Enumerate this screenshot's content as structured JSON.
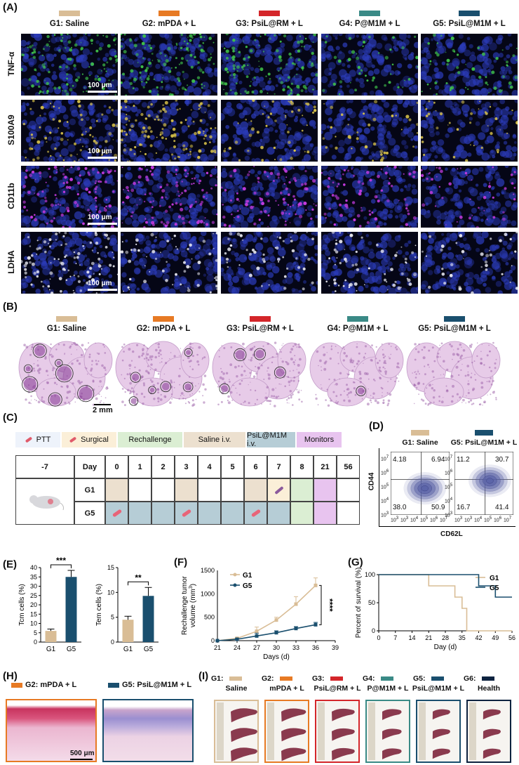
{
  "panels": {
    "A": "(A)",
    "B": "(B)",
    "C": "(C)",
    "D": "(D)",
    "E": "(E)",
    "F": "(F)",
    "G": "(G)",
    "H": "(H)",
    "I": "(I)"
  },
  "colors": {
    "g1": "#d9bd96",
    "g2": "#e77a24",
    "g3": "#d4262a",
    "g4": "#3a8a86",
    "g5": "#1a4f6e",
    "g6": "#0e2340"
  },
  "groups": [
    "G1: Saline",
    "G2: mPDA + L",
    "G3: PsiL@RM + L",
    "G4: P@M1M + L",
    "G5: PsiL@M1M + L"
  ],
  "panel_a": {
    "markers": [
      "TNF-α",
      "S100A9",
      "CD11b",
      "LDHA"
    ],
    "scale": "100 μm",
    "marker_colors": [
      "#3fc04a",
      "#d8c24a",
      "#c43be0",
      "#e8e8f0"
    ]
  },
  "panel_b": {
    "scale": "2 mm"
  },
  "panel_c": {
    "legend": [
      "PTT",
      "Surgical",
      "Rechallenge",
      "Saline i.v.",
      "PsiL@M1M i.v.",
      "Monitors"
    ],
    "legend_colors": [
      "#eef3fb",
      "#fbefd8",
      "#dbeed3",
      "#ece0cf",
      "#b6cdd6",
      "#e8c4ef"
    ],
    "header_first": "-7",
    "header_day": "Day",
    "days": [
      "0",
      "1",
      "2",
      "3",
      "4",
      "5",
      "6",
      "7",
      "8",
      "21",
      "56"
    ],
    "rows": [
      "G1",
      "G5"
    ]
  },
  "panel_d": {
    "titles": [
      "G1: Saline",
      "G5: PsiL@M1M + L"
    ],
    "ylabel": "CD44",
    "xlabel": "CD62L",
    "quadrants": [
      [
        "4.18",
        "6.94",
        "38.0",
        "50.9"
      ],
      [
        "11.2",
        "30.7",
        "16.7",
        "41.4"
      ]
    ],
    "yticks": [
      "10",
      "10",
      "10",
      "10",
      "10",
      "10"
    ],
    "yexp": [
      "7",
      "6",
      "5",
      "4",
      "3"
    ],
    "xticks": [
      "10",
      "10",
      "10",
      "10",
      "10",
      "10"
    ],
    "xexp": [
      "3",
      "3",
      "4",
      "5",
      "6",
      "7"
    ]
  },
  "chart_data": [
    {
      "type": "bar",
      "categories": [
        "G1",
        "G5"
      ],
      "values": [
        6.0,
        35.0
      ],
      "errors": [
        1.0,
        3.5
      ],
      "ylabel": "Tcm cells (%)",
      "ylim": [
        0,
        40
      ],
      "yticks": [
        "0",
        "5",
        "10",
        "15",
        "20",
        "25",
        "30",
        "35",
        "40"
      ],
      "significance": "***"
    },
    {
      "type": "bar",
      "categories": [
        "G1",
        "G5"
      ],
      "values": [
        4.5,
        9.3
      ],
      "errors": [
        0.7,
        1.7
      ],
      "ylabel": "Tem cells (%)",
      "ylim": [
        0,
        15
      ],
      "yticks": [
        "0",
        "5",
        "10",
        "15"
      ],
      "significance": "**"
    },
    {
      "type": "line",
      "x": [
        21,
        24,
        27,
        30,
        33,
        36
      ],
      "series": [
        {
          "name": "G1",
          "values": [
            0,
            50,
            200,
            440,
            780,
            1180
          ],
          "errors": [
            0,
            20,
            90,
            60,
            160,
            160
          ]
        },
        {
          "name": "G5",
          "values": [
            0,
            30,
            100,
            170,
            260,
            340
          ],
          "errors": [
            0,
            15,
            60,
            40,
            40,
            50
          ]
        }
      ],
      "xlabel": "Days (d)",
      "ylabel": "Rechallenge tumor volume (mm3)",
      "ylabel_lines": [
        "Rechallenge tumor",
        "volume (mm"
      ],
      "xlim": [
        21,
        39
      ],
      "ylim": [
        0,
        1500
      ],
      "xticks": [
        "21",
        "24",
        "27",
        "30",
        "33",
        "36",
        "39"
      ],
      "yticks": [
        "0",
        "500",
        "1000",
        "1500"
      ],
      "significance": "****"
    },
    {
      "type": "line",
      "series": [
        {
          "name": "G1",
          "steps": [
            [
              0,
              100
            ],
            [
              21,
              100
            ],
            [
              21,
              80
            ],
            [
              32,
              80
            ],
            [
              32,
              60
            ],
            [
              35,
              60
            ],
            [
              35,
              40
            ],
            [
              37,
              40
            ],
            [
              37,
              0
            ],
            [
              56,
              0
            ]
          ]
        },
        {
          "name": "G5",
          "steps": [
            [
              0,
              100
            ],
            [
              42,
              100
            ],
            [
              42,
              80
            ],
            [
              49,
              80
            ],
            [
              49,
              60
            ],
            [
              56,
              60
            ]
          ]
        }
      ],
      "xlabel": "Day (d)",
      "ylabel": "Percent of survival (%)",
      "xlim": [
        0,
        56
      ],
      "ylim": [
        0,
        100
      ],
      "xticks": [
        "0",
        "7",
        "14",
        "21",
        "28",
        "35",
        "42",
        "49",
        "56"
      ],
      "yticks": [
        "0",
        "50",
        "100"
      ]
    }
  ],
  "panel_h": {
    "titles": [
      "G2: mPDA + L",
      "G5: PsiL@M1M + L"
    ],
    "scale": "500 μm"
  },
  "panel_i": {
    "titles": [
      [
        "G1:",
        "Saline"
      ],
      [
        "G2:",
        "mPDA + L"
      ],
      [
        "G3:",
        "PsiL@RM + L"
      ],
      [
        "G4:",
        "P@M1M + L"
      ],
      [
        "G5:",
        "PsiL@M1M + L"
      ],
      [
        "G6:",
        "Health"
      ]
    ]
  }
}
